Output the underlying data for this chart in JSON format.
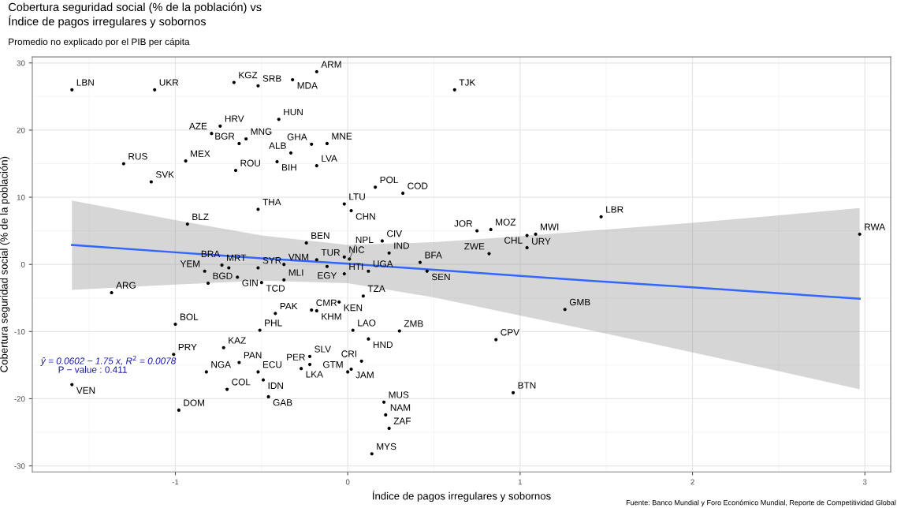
{
  "chart_data": {
    "type": "scatter",
    "title": "Cobertura seguridad social (% de la población) vs\nÍndice de pagos irregulares y sobornos",
    "subtitle": "Promedio no explicado por el PIB per cápita",
    "xlabel": "Índice de pagos irregulares y sobornos",
    "ylabel": "Cobertura seguridad social (% de la población)",
    "xlim": [
      -1.83,
      3.15
    ],
    "ylim": [
      -30.9,
      30.9
    ],
    "xticks": [
      -1,
      0,
      1,
      2,
      3
    ],
    "yticks": [
      -30,
      -20,
      -10,
      0,
      10,
      20,
      30
    ],
    "grid": true,
    "marker": "circle",
    "legend": false,
    "series": [
      {
        "color": "#000000",
        "x": [
          -1.6,
          -1.12,
          -0.66,
          -0.52,
          -0.18,
          -0.32,
          -0.4,
          -0.74,
          -0.79,
          -0.59,
          -0.63,
          -0.21,
          -0.33,
          -0.94,
          -0.41,
          -1.3,
          -0.18,
          -0.65,
          -1.14,
          -0.52,
          -0.93,
          -0.24,
          -0.12,
          0.62,
          0.16,
          0.32,
          -0.02,
          0.02,
          0.2,
          0.24,
          -0.02,
          0.42,
          0.75,
          0.83,
          1.04,
          1.09,
          1.04,
          0.82,
          1.47,
          2.97,
          -0.73,
          -0.69,
          -0.83,
          -0.81,
          -0.64,
          -0.5,
          -0.37,
          -0.37,
          -0.52,
          -0.18,
          -1.37,
          -0.21,
          -0.18,
          -0.42,
          -1.0,
          -0.51,
          -0.72,
          -1.01,
          -0.22,
          -0.63,
          -0.22,
          -0.27,
          -0.82,
          -0.52,
          -0.49,
          -1.6,
          -0.7,
          -0.46,
          -0.98,
          -0.12,
          -0.02,
          0.12,
          0.01,
          0.46,
          -0.05,
          0.09,
          1.26,
          0.03,
          0.3,
          0.86,
          0.12,
          0.08,
          0.02,
          0.0,
          0.96,
          0.21,
          0.22,
          0.24,
          0.14
        ],
        "values": [
          26.0,
          26.0,
          27.1,
          26.6,
          28.7,
          27.5,
          21.6,
          20.6,
          19.5,
          18.7,
          18.0,
          17.9,
          16.6,
          15.4,
          15.3,
          15.0,
          14.7,
          14.0,
          12.3,
          8.2,
          6.0,
          3.2,
          18.0,
          26.0,
          11.5,
          10.6,
          9.0,
          8.0,
          3.5,
          1.7,
          1.1,
          0.3,
          5.0,
          5.2,
          4.3,
          4.5,
          2.5,
          1.6,
          7.1,
          4.5,
          -0.1,
          -0.5,
          -1.0,
          -2.8,
          -1.9,
          -2.7,
          -2.3,
          0.0,
          -0.5,
          0.7,
          -4.2,
          -6.8,
          -6.9,
          -7.3,
          -8.9,
          -9.8,
          -12.4,
          -13.4,
          -13.7,
          -14.6,
          -14.9,
          -15.5,
          -16.0,
          -16.0,
          -17.2,
          -17.9,
          -18.6,
          -19.7,
          -21.7,
          -0.3,
          -1.4,
          -1.0,
          0.8,
          -1.0,
          -5.6,
          -4.7,
          -6.7,
          -9.8,
          -9.9,
          -11.2,
          -11.1,
          -14.4,
          -15.6,
          -16.0,
          -19.1,
          -20.5,
          -22.4,
          -24.4,
          -28.2
        ]
      },
      {
        "type": "line",
        "color": "#3366ff",
        "line_style": "solid",
        "marker": "none",
        "x": [
          -1.6,
          -1,
          -0.5,
          0,
          0.5,
          1,
          1.5,
          2,
          2.5,
          2.97
        ],
        "values": [
          2.9,
          1.8,
          0.9,
          0.1,
          -0.8,
          -1.7,
          -2.6,
          -3.4,
          -4.3,
          -5.1
        ],
        "upper": [
          9.5,
          6.6,
          4.3,
          2.9,
          3.3,
          4.2,
          5.2,
          6.2,
          7.3,
          8.4
        ],
        "lower": [
          -3.8,
          -3.0,
          -2.4,
          -2.8,
          -4.9,
          -7.6,
          -10.3,
          -13.1,
          -15.9,
          -18.6
        ]
      }
    ],
    "annotations": [
      "ŷ = 0.0602 − 1.75 x, R$^{2}$ = 0.0078",
      "P − value : 0.411",
      "Fuente: Banco Mundial y Foro Económico Mundial, Reporte de Competitividad Global",
      {
        "text": "LBN",
        "x": -1.6,
        "y": 26.0
      },
      {
        "text": "UKR",
        "x": -1.12,
        "y": 26.0
      },
      {
        "text": "KGZ",
        "x": -0.66,
        "y": 27.1
      },
      {
        "text": "SRB",
        "x": -0.52,
        "y": 26.6
      },
      {
        "text": "ARM",
        "x": -0.18,
        "y": 28.7
      },
      {
        "text": "MDA",
        "x": -0.32,
        "y": 27.5
      },
      {
        "text": "HUN",
        "x": -0.4,
        "y": 21.6
      },
      {
        "text": "HRV",
        "x": -0.74,
        "y": 20.6
      },
      {
        "text": "AZE",
        "x": -0.79,
        "y": 19.5
      },
      {
        "text": "MNG",
        "x": -0.59,
        "y": 18.7
      },
      {
        "text": "BGR",
        "x": -0.63,
        "y": 18.0
      },
      {
        "text": "GHA",
        "x": -0.21,
        "y": 17.9
      },
      {
        "text": "ALB",
        "x": -0.33,
        "y": 16.6
      },
      {
        "text": "MEX",
        "x": -0.94,
        "y": 15.4
      },
      {
        "text": "BIH",
        "x": -0.41,
        "y": 15.3
      },
      {
        "text": "RUS",
        "x": -1.3,
        "y": 15.0
      },
      {
        "text": "LVA",
        "x": -0.18,
        "y": 14.7
      },
      {
        "text": "ROU",
        "x": -0.65,
        "y": 14.0
      },
      {
        "text": "SVK",
        "x": -1.14,
        "y": 12.3
      },
      {
        "text": "THA",
        "x": -0.52,
        "y": 8.2
      },
      {
        "text": "BLZ",
        "x": -0.93,
        "y": 6.0
      },
      {
        "text": "BEN",
        "x": -0.24,
        "y": 3.2
      },
      {
        "text": "MNE",
        "x": -0.12,
        "y": 18.0
      },
      {
        "text": "TJK",
        "x": 0.62,
        "y": 26.0
      },
      {
        "text": "POL",
        "x": 0.16,
        "y": 11.5
      },
      {
        "text": "COD",
        "x": 0.32,
        "y": 10.6
      },
      {
        "text": "LTU",
        "x": -0.02,
        "y": 9.0
      },
      {
        "text": "CHN",
        "x": 0.02,
        "y": 8.0
      },
      {
        "text": "CIV",
        "x": 0.2,
        "y": 3.5
      },
      {
        "text": "IND",
        "x": 0.24,
        "y": 1.7
      },
      {
        "text": "NIC",
        "x": -0.02,
        "y": 1.1
      },
      {
        "text": "BFA",
        "x": 0.42,
        "y": 0.3
      },
      {
        "text": "JOR",
        "x": 0.75,
        "y": 5.0
      },
      {
        "text": "MOZ",
        "x": 0.83,
        "y": 5.2
      },
      {
        "text": "URY",
        "x": 1.04,
        "y": 4.3
      },
      {
        "text": "MWI",
        "x": 1.09,
        "y": 4.5
      },
      {
        "text": "CHL",
        "x": 1.04,
        "y": 2.5
      },
      {
        "text": "ZWE",
        "x": 0.82,
        "y": 1.6
      },
      {
        "text": "LBR",
        "x": 1.47,
        "y": 7.1
      },
      {
        "text": "RWA",
        "x": 2.97,
        "y": 4.5
      },
      {
        "text": "MRT",
        "x": -0.73,
        "y": -0.1
      },
      {
        "text": "BRA",
        "x": -0.69,
        "y": -0.5
      },
      {
        "text": "YEM",
        "x": -0.83,
        "y": -1.0
      },
      {
        "text": "BGD",
        "x": -0.81,
        "y": -2.8
      },
      {
        "text": "GIN",
        "x": -0.64,
        "y": -1.9
      },
      {
        "text": "TCD",
        "x": -0.5,
        "y": -2.7
      },
      {
        "text": "MLI",
        "x": -0.37,
        "y": -2.3
      },
      {
        "text": "VNM",
        "x": -0.37,
        "y": 0.0
      },
      {
        "text": "SYR",
        "x": -0.52,
        "y": -0.5
      },
      {
        "text": "TUR",
        "x": -0.18,
        "y": 0.7
      },
      {
        "text": "ARG",
        "x": -1.37,
        "y": -4.2
      },
      {
        "text": "CMR",
        "x": -0.21,
        "y": -6.8
      },
      {
        "text": "KHM",
        "x": -0.18,
        "y": -6.9
      },
      {
        "text": "PAK",
        "x": -0.42,
        "y": -7.3
      },
      {
        "text": "BOL",
        "x": -1.0,
        "y": -8.9
      },
      {
        "text": "PHL",
        "x": -0.51,
        "y": -9.8
      },
      {
        "text": "KAZ",
        "x": -0.72,
        "y": -12.4
      },
      {
        "text": "PRY",
        "x": -1.01,
        "y": -13.4
      },
      {
        "text": "SLV",
        "x": -0.22,
        "y": -13.7
      },
      {
        "text": "PAN",
        "x": -0.63,
        "y": -14.6
      },
      {
        "text": "PER",
        "x": -0.22,
        "y": -14.9
      },
      {
        "text": "LKA",
        "x": -0.27,
        "y": -15.5
      },
      {
        "text": "NGA",
        "x": -0.82,
        "y": -16.0
      },
      {
        "text": "ECU",
        "x": -0.52,
        "y": -16.0
      },
      {
        "text": "IDN",
        "x": -0.49,
        "y": -17.2
      },
      {
        "text": "VEN",
        "x": -1.6,
        "y": -17.9
      },
      {
        "text": "COL",
        "x": -0.7,
        "y": -18.6
      },
      {
        "text": "GAB",
        "x": -0.46,
        "y": -19.7
      },
      {
        "text": "DOM",
        "x": -0.98,
        "y": -21.7
      },
      {
        "text": "EGY",
        "x": -0.12,
        "y": -0.3
      },
      {
        "text": "HTI",
        "x": -0.02,
        "y": -1.4
      },
      {
        "text": "UGA",
        "x": 0.12,
        "y": -1.0
      },
      {
        "text": "NPL",
        "x": 0.01,
        "y": 0.8
      },
      {
        "text": "SEN",
        "x": 0.46,
        "y": -1.0
      },
      {
        "text": "KEN",
        "x": -0.05,
        "y": -5.6
      },
      {
        "text": "TZA",
        "x": 0.09,
        "y": -4.7
      },
      {
        "text": "GMB",
        "x": 1.26,
        "y": -6.7
      },
      {
        "text": "LAO",
        "x": 0.03,
        "y": -9.8
      },
      {
        "text": "ZMB",
        "x": 0.3,
        "y": -9.9
      },
      {
        "text": "CPV",
        "x": 0.86,
        "y": -11.2
      },
      {
        "text": "HND",
        "x": 0.12,
        "y": -11.1
      },
      {
        "text": "CRI",
        "x": 0.08,
        "y": -14.4
      },
      {
        "text": "JAM",
        "x": 0.02,
        "y": -15.6
      },
      {
        "text": "GTM",
        "x": 0.0,
        "y": -16.0
      },
      {
        "text": "BTN",
        "x": 0.96,
        "y": -19.1
      },
      {
        "text": "MUS",
        "x": 0.21,
        "y": -20.5
      },
      {
        "text": "NAM",
        "x": 0.22,
        "y": -22.4
      },
      {
        "text": "ZAF",
        "x": 0.24,
        "y": -24.4
      },
      {
        "text": "MYS",
        "x": 0.14,
        "y": -28.2
      }
    ]
  }
}
